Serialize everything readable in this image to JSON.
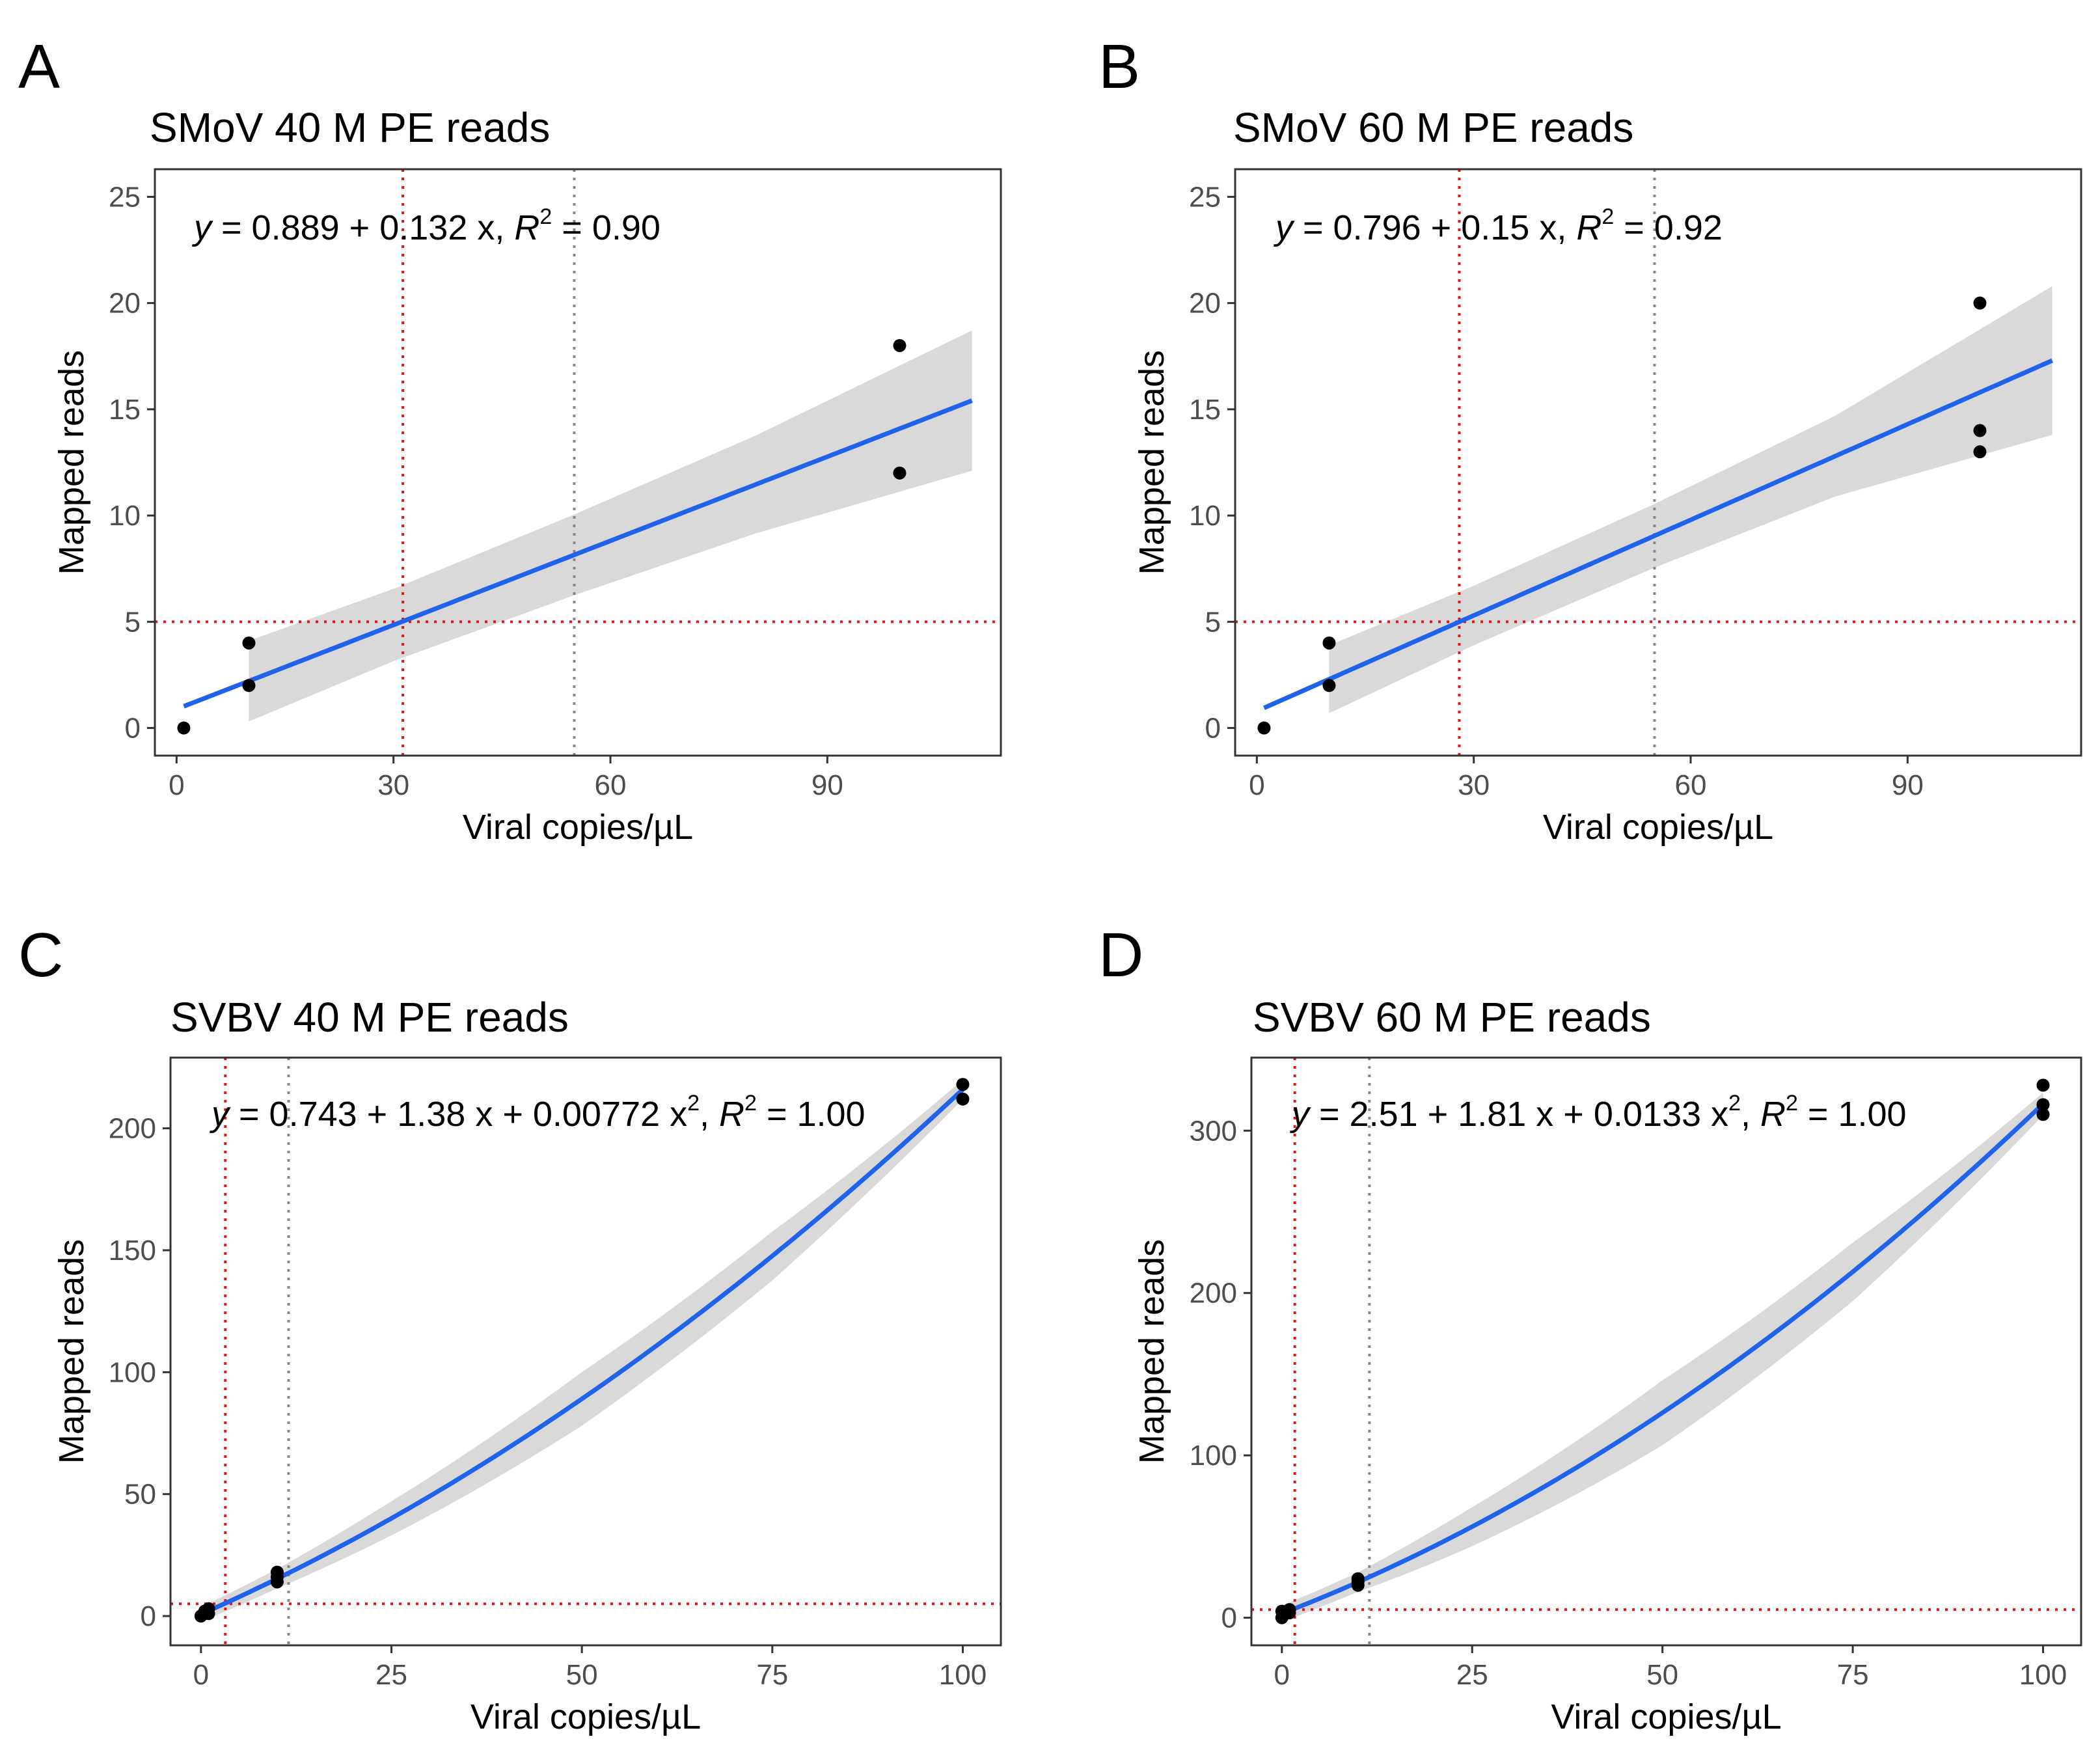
{
  "chart_data": [
    {
      "panel_label": "A",
      "type": "scatter",
      "title": "SMoV 40 M PE reads",
      "xlabel": "Viral copies/µL",
      "ylabel": "Mapped reads",
      "xlim": [
        -3,
        114
      ],
      "ylim": [
        -1.3,
        26.3
      ],
      "xticks": [
        0,
        30,
        60,
        90
      ],
      "yticks": [
        0,
        5,
        10,
        15,
        20,
        25
      ],
      "equation": {
        "y": "y",
        "intercept": "0.889",
        "term1": "0.132 x",
        "term2": "",
        "r2": "0.90"
      },
      "points": [
        {
          "x": 1,
          "y": 0
        },
        {
          "x": 10,
          "y": 2
        },
        {
          "x": 10,
          "y": 4
        },
        {
          "x": 100,
          "y": 12
        },
        {
          "x": 100,
          "y": 18
        }
      ],
      "fit": {
        "degree": 1,
        "coef": [
          0.889,
          0.132
        ],
        "x_range": [
          1,
          110
        ],
        "ci_x": [
          10,
          30,
          55,
          80,
          110
        ],
        "ci_halfwidth": [
          1.9,
          1.7,
          1.9,
          2.3,
          3.3
        ]
      },
      "ref_lines": {
        "hline_red": 5,
        "vline_red": 31.3,
        "vline_gray": 55
      }
    },
    {
      "panel_label": "B",
      "type": "scatter",
      "title": "SMoV 60 M PE reads",
      "xlabel": "Viral copies/µL",
      "ylabel": "Mapped reads",
      "xlim": [
        -3,
        114
      ],
      "ylim": [
        -1.3,
        26.3
      ],
      "xticks": [
        0,
        30,
        60,
        90
      ],
      "yticks": [
        0,
        5,
        10,
        15,
        20,
        25
      ],
      "equation": {
        "y": "y",
        "intercept": "0.796",
        "term1": "0.15 x",
        "term2": "",
        "r2": "0.92"
      },
      "points": [
        {
          "x": 1,
          "y": 0
        },
        {
          "x": 10,
          "y": 2
        },
        {
          "x": 10,
          "y": 4
        },
        {
          "x": 100,
          "y": 13
        },
        {
          "x": 100,
          "y": 14
        },
        {
          "x": 100,
          "y": 20
        }
      ],
      "fit": {
        "degree": 1,
        "coef": [
          0.796,
          0.15
        ],
        "x_range": [
          1,
          110
        ],
        "ci_x": [
          10,
          30,
          55,
          80,
          110
        ],
        "ci_halfwidth": [
          1.6,
          1.4,
          1.5,
          1.9,
          3.5
        ]
      },
      "ref_lines": {
        "hline_red": 5,
        "vline_red": 28,
        "vline_gray": 55
      }
    },
    {
      "panel_label": "C",
      "type": "scatter",
      "title": "SVBV 40 M PE reads",
      "xlabel": "Viral copies/µL",
      "ylabel": "Mapped reads",
      "xlim": [
        -4,
        105
      ],
      "ylim": [
        -12,
        229
      ],
      "xticks": [
        0,
        25,
        50,
        75,
        100
      ],
      "yticks": [
        0,
        50,
        100,
        150,
        200
      ],
      "equation": {
        "y": "y",
        "intercept": "0.743",
        "term1": "1.38 x",
        "term2": "0.00772 x",
        "r2": "1.00"
      },
      "points": [
        {
          "x": 0,
          "y": 0
        },
        {
          "x": 0.5,
          "y": 2
        },
        {
          "x": 1,
          "y": 3
        },
        {
          "x": 1,
          "y": 1
        },
        {
          "x": 10,
          "y": 14
        },
        {
          "x": 10,
          "y": 16
        },
        {
          "x": 10,
          "y": 18
        },
        {
          "x": 100,
          "y": 212
        },
        {
          "x": 100,
          "y": 218
        }
      ],
      "fit": {
        "degree": 2,
        "coef": [
          0.743,
          1.38,
          0.00772
        ],
        "x_range": [
          0,
          100
        ],
        "ci_x": [
          0,
          10,
          25,
          50,
          75,
          100
        ],
        "ci_halfwidth": [
          3,
          4,
          7,
          11,
          10,
          4
        ]
      },
      "ref_lines": {
        "hline_red": 5,
        "vline_red": 3.2,
        "vline_gray": 11.5
      }
    },
    {
      "panel_label": "D",
      "type": "scatter",
      "title": "SVBV 60 M PE reads",
      "xlabel": "Viral copies/µL",
      "ylabel": "Mapped reads",
      "xlim": [
        -4,
        105
      ],
      "ylim": [
        -17,
        345
      ],
      "xticks": [
        0,
        25,
        50,
        75,
        100
      ],
      "yticks": [
        0,
        100,
        200,
        300
      ],
      "equation": {
        "y": "y",
        "intercept": "2.51",
        "term1": "1.81 x",
        "term2": "0.0133 x",
        "r2": "1.00"
      },
      "points": [
        {
          "x": 0,
          "y": 0
        },
        {
          "x": 0,
          "y": 4
        },
        {
          "x": 1,
          "y": 3
        },
        {
          "x": 1,
          "y": 5
        },
        {
          "x": 10,
          "y": 20
        },
        {
          "x": 10,
          "y": 22
        },
        {
          "x": 10,
          "y": 24
        },
        {
          "x": 100,
          "y": 310
        },
        {
          "x": 100,
          "y": 316
        },
        {
          "x": 100,
          "y": 328
        }
      ],
      "fit": {
        "degree": 2,
        "coef": [
          2.51,
          1.81,
          0.0133
        ],
        "x_range": [
          0,
          100
        ],
        "ci_x": [
          0,
          10,
          25,
          50,
          75,
          100
        ],
        "ci_halfwidth": [
          5,
          6,
          12,
          20,
          18,
          7
        ]
      },
      "ref_lines": {
        "hline_red": 5,
        "vline_red": 1.7,
        "vline_gray": 11.5
      }
    }
  ],
  "colors": {
    "fit_line": "#1f63ea",
    "ci_band": "#d9d9d9",
    "ref_red": "#ee1111",
    "ref_gray": "#888888",
    "point": "#000000",
    "axis_text": "#4d4d4d",
    "panel_border": "#333333"
  }
}
